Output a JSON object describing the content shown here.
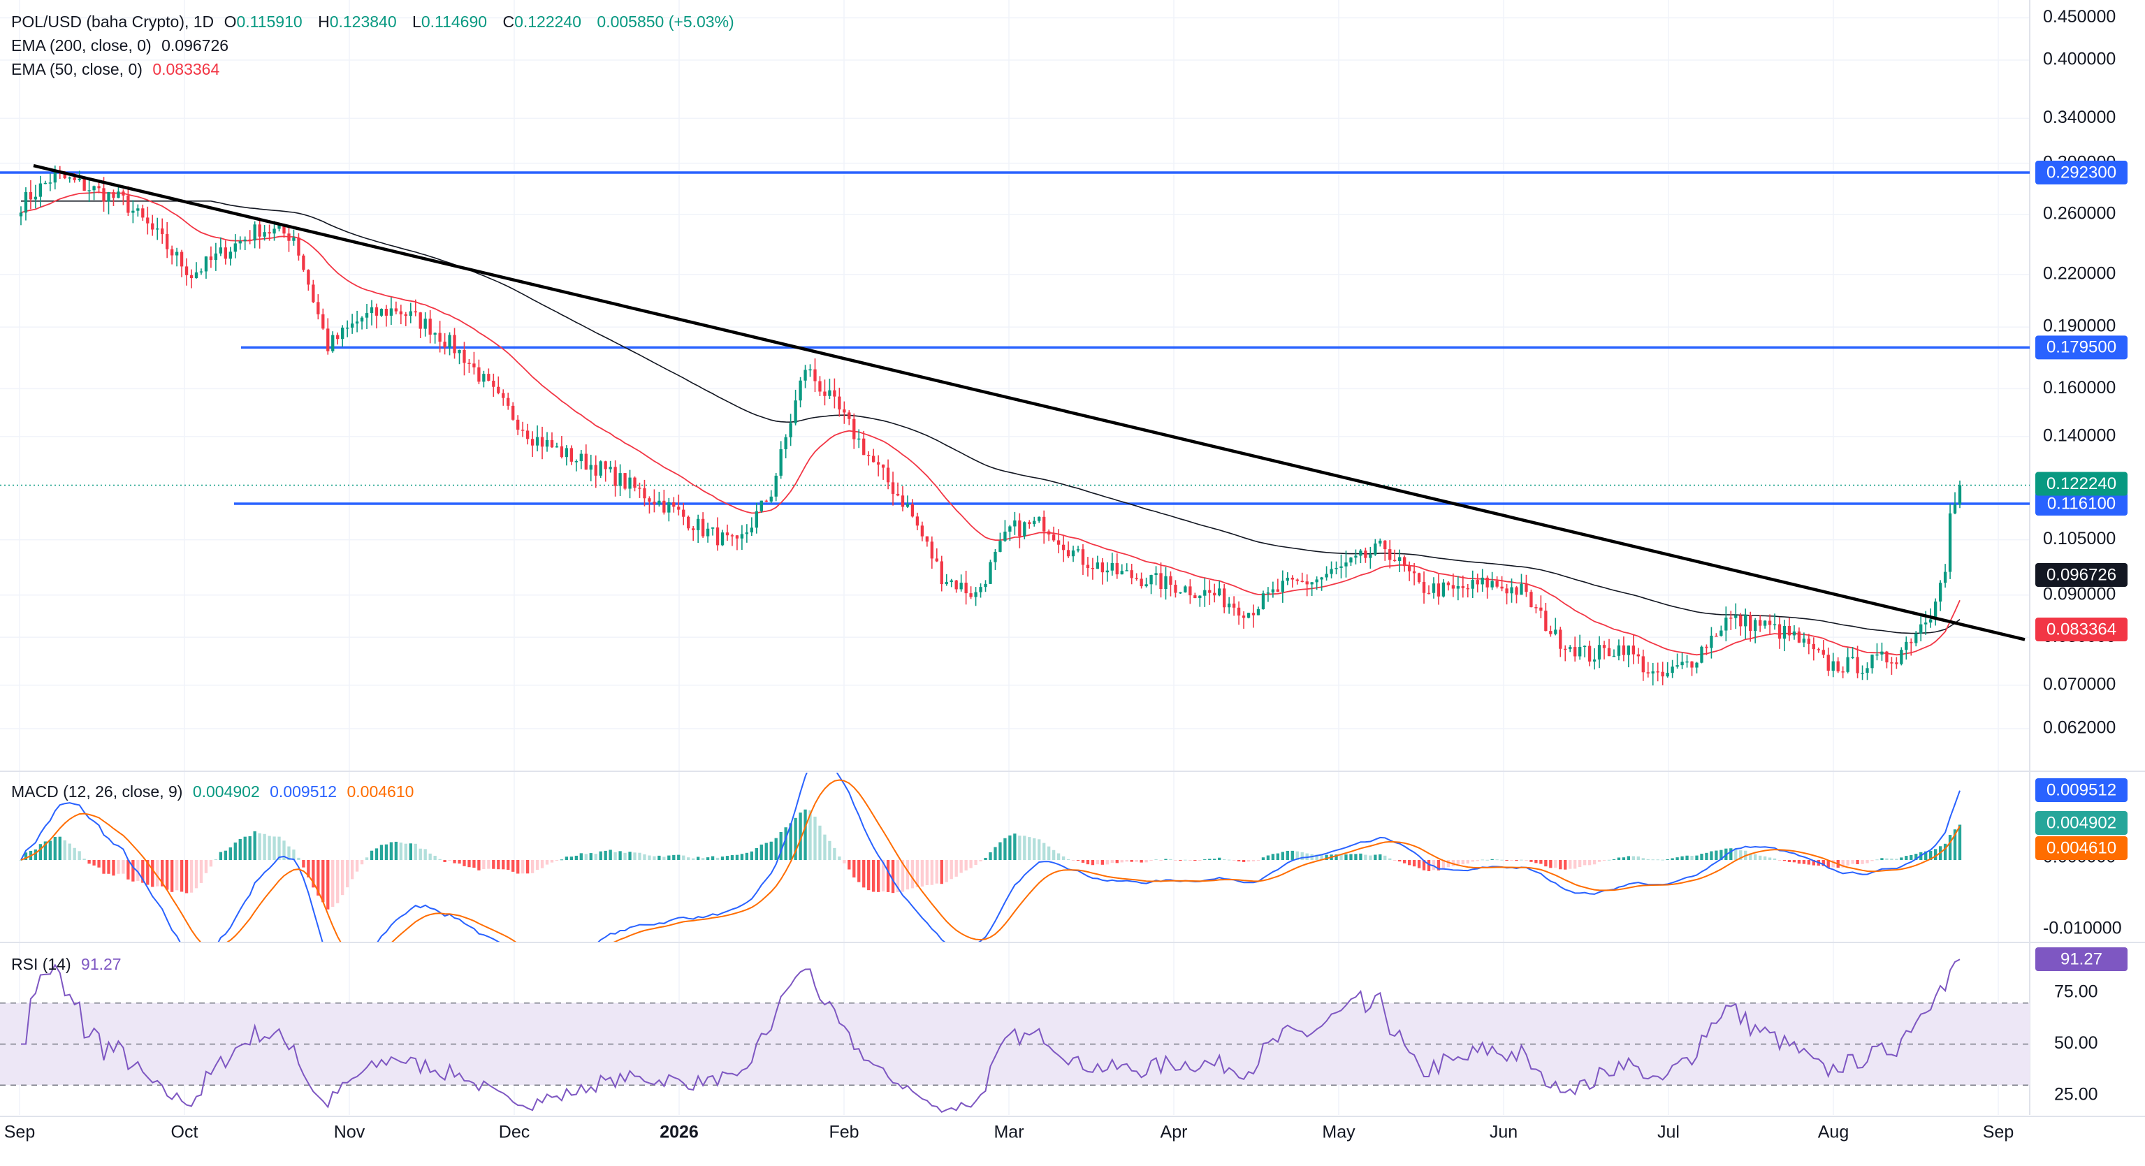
{
  "header": {
    "symbol": "POL/USD (baha Crypto), 1D",
    "o_label": "O",
    "o_value": "0.115910",
    "h_label": "H",
    "h_value": "0.123840",
    "l_label": "L",
    "l_value": "0.114690",
    "c_label": "C",
    "c_value": "0.122240",
    "change": "0.005850 (+5.03%)",
    "ema200_label": "EMA (200, close, 0)",
    "ema200_value": "0.096726",
    "ema50_label": "EMA (50, close, 0)",
    "ema50_value": "0.083364"
  },
  "macd_legend": {
    "label": "MACD (12, 26, close, 9)",
    "hist": "0.004902",
    "macd": "0.009512",
    "signal": "0.004610"
  },
  "rsi_legend": {
    "label": "RSI (14)",
    "value": "91.27"
  },
  "colors": {
    "up": "#089981",
    "down": "#f23645",
    "ema50": "#f23645",
    "ema200": "#131722",
    "hline": "#2962ff",
    "macd": "#2962ff",
    "signal": "#ff6d00",
    "rsi": "#7e57c2",
    "rsi_band": "#ede7f6"
  },
  "chart_data": [
    {
      "type": "candlestick",
      "title": "POL/USD (baha Crypto), 1D",
      "scale": "log",
      "x_ticks": [
        "Sep",
        "Oct",
        "Nov",
        "Dec",
        "2026",
        "Feb",
        "Mar",
        "Apr",
        "May",
        "Jun",
        "Jul",
        "Aug",
        "Sep"
      ],
      "y_ticks": [
        "0.450000",
        "0.400000",
        "0.340000",
        "0.300000",
        "0.260000",
        "0.220000",
        "0.190000",
        "0.160000",
        "0.140000",
        "0.105000",
        "0.090000",
        "0.080000",
        "0.070000",
        "0.062000"
      ],
      "ylim": [
        0.058,
        0.47
      ],
      "weekly_closes": [
        0.268,
        0.29,
        0.28,
        0.27,
        0.245,
        0.22,
        0.235,
        0.25,
        0.245,
        0.18,
        0.195,
        0.2,
        0.19,
        0.175,
        0.155,
        0.14,
        0.133,
        0.128,
        0.121,
        0.115,
        0.108,
        0.103,
        0.12,
        0.17,
        0.15,
        0.13,
        0.115,
        0.095,
        0.09,
        0.108,
        0.11,
        0.1,
        0.096,
        0.094,
        0.092,
        0.09,
        0.086,
        0.092,
        0.094,
        0.098,
        0.103,
        0.092,
        0.091,
        0.093,
        0.091,
        0.08,
        0.076,
        0.078,
        0.071,
        0.075,
        0.084,
        0.083,
        0.08,
        0.074,
        0.074,
        0.076,
        0.086,
        0.122
      ],
      "last_candle": {
        "open": 0.11591,
        "high": 0.12384,
        "low": 0.11469,
        "close": 0.12224
      },
      "ema200_last": 0.096726,
      "ema50_last": 0.083364,
      "horizontal_levels": [
        {
          "value": 0.2923,
          "label": "0.292300"
        },
        {
          "value": 0.1795,
          "label": "0.179500"
        },
        {
          "value": 0.1161,
          "label": "0.116100"
        }
      ],
      "trendline": {
        "from": [
          "Sep",
          0.298
        ],
        "to": [
          "Sep",
          0.0795
        ]
      },
      "price_labels": [
        {
          "text": "0.122240",
          "role": "last-price"
        },
        {
          "text": "0.096726",
          "role": "ema200"
        },
        {
          "text": "0.083364",
          "role": "ema50"
        }
      ]
    },
    {
      "type": "line",
      "title": "MACD (12, 26, close, 9)",
      "y_ticks": [
        "0.000000",
        "-0.010000"
      ],
      "series": [
        {
          "name": "MACD",
          "last": 0.009512
        },
        {
          "name": "Signal",
          "last": 0.00461
        },
        {
          "name": "Histogram",
          "last": 0.004902
        }
      ]
    },
    {
      "type": "line",
      "title": "RSI (14)",
      "y_ticks": [
        "75.00",
        "50.00",
        "25.00"
      ],
      "bands": [
        30,
        50,
        70
      ],
      "series": [
        {
          "name": "RSI",
          "last": 91.27
        }
      ]
    }
  ]
}
